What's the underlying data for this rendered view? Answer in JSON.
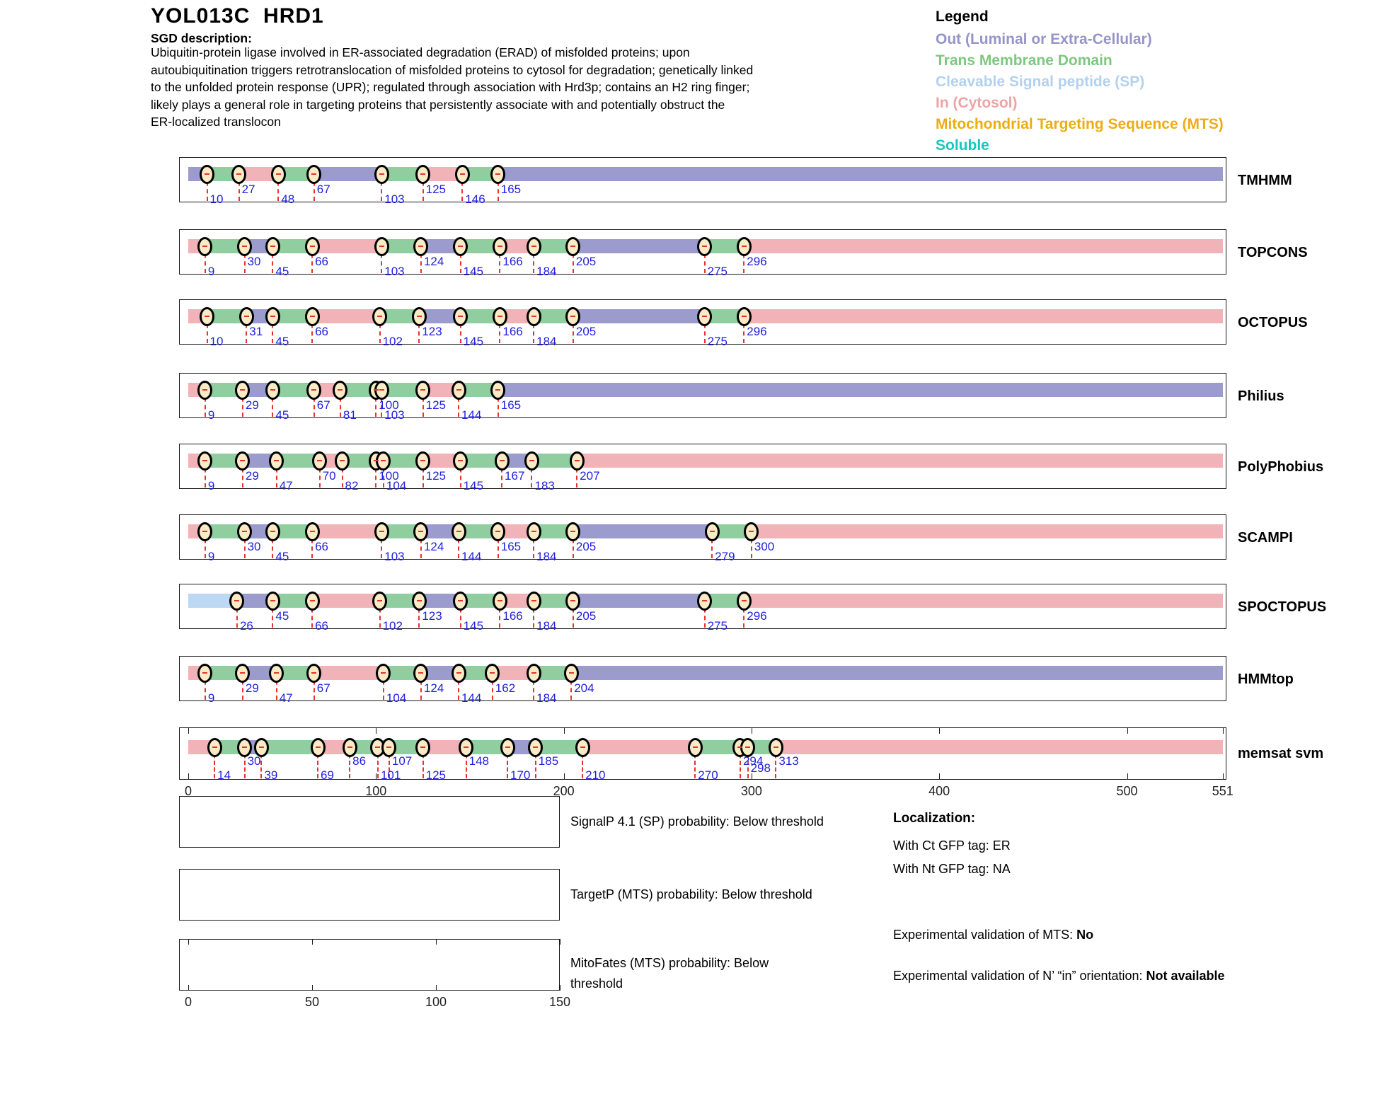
{
  "header": {
    "title": "YOL013C  HRD1",
    "sgd_label": "SGD description:",
    "description_lines": [
      "Ubiquitin-protein ligase involved in ER-associated degradation (ERAD) of misfolded proteins; upon",
      "autoubiquitination triggers retrotranslocation of misfolded proteins to cytosol for degradation; genetically linked",
      "to the unfolded protein response (UPR); regulated through association with Hrd3p; contains an H2 ring finger;",
      "likely plays a general role in targeting proteins that persistently associate with and potentially obstruct the",
      "ER-localized translocon"
    ]
  },
  "legend": {
    "title": "Legend",
    "items": [
      {
        "key": "out",
        "label": "Out (Luminal or Extra-Cellular)",
        "color": "#9694c8"
      },
      {
        "key": "tm",
        "label": "Trans Membrane Domain",
        "color": "#7ec87f"
      },
      {
        "key": "sp",
        "label": "Cleavable Signal peptide (SP)",
        "color": "#b3d1ee"
      },
      {
        "key": "in",
        "label": "In (Cytosol)",
        "color": "#f0a3a3"
      },
      {
        "key": "mts",
        "label": "Mitochondrial Targeting Sequence (MTS)",
        "color": "#edac15"
      },
      {
        "key": "soluble",
        "label": "Soluble",
        "color": "#16c7be"
      }
    ]
  },
  "colors": {
    "out": "#9b9bce",
    "tm": "#90ce9f",
    "in": "#f2b3b8",
    "sp": "#bcd8f2",
    "marker_fill": "#f8ebc6",
    "dash_red": "#e8322e",
    "number_blue": "#2121dd"
  },
  "chart_data": {
    "type": "bar",
    "subtype": "protein-topology-prediction-tracks",
    "xlim": [
      0,
      551
    ],
    "x_ticks": [
      0,
      100,
      200,
      300,
      400,
      500,
      551
    ],
    "grid": false,
    "legend_position": "top-right",
    "tracks": [
      {
        "name": "TMHMM",
        "segments": [
          [
            0,
            10,
            "out"
          ],
          [
            10,
            27,
            "tm"
          ],
          [
            27,
            48,
            "in"
          ],
          [
            48,
            67,
            "tm"
          ],
          [
            67,
            103,
            "out"
          ],
          [
            103,
            125,
            "tm"
          ],
          [
            125,
            146,
            "in"
          ],
          [
            146,
            165,
            "tm"
          ],
          [
            165,
            551,
            "out"
          ]
        ],
        "boundaries": [
          [
            10,
            "l"
          ],
          [
            27,
            "u"
          ],
          [
            48,
            "l"
          ],
          [
            67,
            "u"
          ],
          [
            103,
            "l"
          ],
          [
            125,
            "u"
          ],
          [
            146,
            "l"
          ],
          [
            165,
            "u"
          ]
        ]
      },
      {
        "name": "TOPCONS",
        "segments": [
          [
            0,
            9,
            "in"
          ],
          [
            9,
            30,
            "tm"
          ],
          [
            30,
            45,
            "out"
          ],
          [
            45,
            66,
            "tm"
          ],
          [
            66,
            103,
            "in"
          ],
          [
            103,
            124,
            "tm"
          ],
          [
            124,
            145,
            "out"
          ],
          [
            145,
            166,
            "tm"
          ],
          [
            166,
            184,
            "in"
          ],
          [
            184,
            205,
            "tm"
          ],
          [
            205,
            275,
            "out"
          ],
          [
            275,
            296,
            "tm"
          ],
          [
            296,
            551,
            "in"
          ]
        ],
        "boundaries": [
          [
            9,
            "l"
          ],
          [
            30,
            "u"
          ],
          [
            45,
            "l"
          ],
          [
            66,
            "u"
          ],
          [
            103,
            "l"
          ],
          [
            124,
            "u"
          ],
          [
            145,
            "l"
          ],
          [
            166,
            "u"
          ],
          [
            184,
            "l"
          ],
          [
            205,
            "u"
          ],
          [
            275,
            "l"
          ],
          [
            296,
            "u"
          ]
        ]
      },
      {
        "name": "OCTOPUS",
        "segments": [
          [
            0,
            10,
            "in"
          ],
          [
            10,
            31,
            "tm"
          ],
          [
            31,
            45,
            "out"
          ],
          [
            45,
            66,
            "tm"
          ],
          [
            66,
            102,
            "in"
          ],
          [
            102,
            123,
            "tm"
          ],
          [
            123,
            145,
            "out"
          ],
          [
            145,
            166,
            "tm"
          ],
          [
            166,
            184,
            "in"
          ],
          [
            184,
            205,
            "tm"
          ],
          [
            205,
            275,
            "out"
          ],
          [
            275,
            296,
            "tm"
          ],
          [
            296,
            551,
            "in"
          ]
        ],
        "boundaries": [
          [
            10,
            "l"
          ],
          [
            31,
            "u"
          ],
          [
            45,
            "l"
          ],
          [
            66,
            "u"
          ],
          [
            102,
            "l"
          ],
          [
            123,
            "u"
          ],
          [
            145,
            "l"
          ],
          [
            166,
            "u"
          ],
          [
            184,
            "l"
          ],
          [
            205,
            "u"
          ],
          [
            275,
            "l"
          ],
          [
            296,
            "u"
          ]
        ]
      },
      {
        "name": "Philius",
        "segments": [
          [
            0,
            9,
            "in"
          ],
          [
            9,
            29,
            "tm"
          ],
          [
            29,
            45,
            "out"
          ],
          [
            45,
            67,
            "tm"
          ],
          [
            67,
            81,
            "in"
          ],
          [
            81,
            100,
            "tm"
          ],
          [
            100,
            103,
            "out"
          ],
          [
            103,
            125,
            "tm"
          ],
          [
            125,
            144,
            "in"
          ],
          [
            144,
            165,
            "tm"
          ],
          [
            165,
            551,
            "out"
          ]
        ],
        "boundaries": [
          [
            9,
            "l"
          ],
          [
            29,
            "u"
          ],
          [
            45,
            "l"
          ],
          [
            67,
            "u"
          ],
          [
            81,
            "l"
          ],
          [
            100,
            "u"
          ],
          [
            103,
            "l"
          ],
          [
            125,
            "u"
          ],
          [
            144,
            "l"
          ],
          [
            165,
            "u"
          ]
        ]
      },
      {
        "name": "PolyPhobius",
        "segments": [
          [
            0,
            9,
            "in"
          ],
          [
            9,
            29,
            "tm"
          ],
          [
            29,
            47,
            "out"
          ],
          [
            47,
            70,
            "tm"
          ],
          [
            70,
            82,
            "in"
          ],
          [
            82,
            100,
            "tm"
          ],
          [
            100,
            104,
            "out"
          ],
          [
            104,
            125,
            "tm"
          ],
          [
            125,
            145,
            "in"
          ],
          [
            145,
            167,
            "tm"
          ],
          [
            167,
            183,
            "out"
          ],
          [
            183,
            207,
            "tm"
          ],
          [
            207,
            551,
            "in"
          ]
        ],
        "boundaries": [
          [
            9,
            "l"
          ],
          [
            29,
            "u"
          ],
          [
            47,
            "l"
          ],
          [
            70,
            "u"
          ],
          [
            82,
            "l"
          ],
          [
            100,
            "u"
          ],
          [
            104,
            "l"
          ],
          [
            125,
            "u"
          ],
          [
            145,
            "l"
          ],
          [
            167,
            "u"
          ],
          [
            183,
            "l"
          ],
          [
            207,
            "u"
          ]
        ]
      },
      {
        "name": "SCAMPI",
        "segments": [
          [
            0,
            9,
            "in"
          ],
          [
            9,
            30,
            "tm"
          ],
          [
            30,
            45,
            "out"
          ],
          [
            45,
            66,
            "tm"
          ],
          [
            66,
            103,
            "in"
          ],
          [
            103,
            124,
            "tm"
          ],
          [
            124,
            144,
            "out"
          ],
          [
            144,
            165,
            "tm"
          ],
          [
            165,
            184,
            "in"
          ],
          [
            184,
            205,
            "tm"
          ],
          [
            205,
            279,
            "out"
          ],
          [
            279,
            300,
            "tm"
          ],
          [
            300,
            551,
            "in"
          ]
        ],
        "boundaries": [
          [
            9,
            "l"
          ],
          [
            30,
            "u"
          ],
          [
            45,
            "l"
          ],
          [
            66,
            "u"
          ],
          [
            103,
            "l"
          ],
          [
            124,
            "u"
          ],
          [
            144,
            "l"
          ],
          [
            165,
            "u"
          ],
          [
            184,
            "l"
          ],
          [
            205,
            "u"
          ],
          [
            279,
            "l"
          ],
          [
            300,
            "u"
          ]
        ]
      },
      {
        "name": "SPOCTOPUS",
        "segments": [
          [
            0,
            26,
            "sp"
          ],
          [
            26,
            45,
            "out"
          ],
          [
            45,
            66,
            "tm"
          ],
          [
            66,
            102,
            "in"
          ],
          [
            102,
            123,
            "tm"
          ],
          [
            123,
            145,
            "out"
          ],
          [
            145,
            166,
            "tm"
          ],
          [
            166,
            184,
            "in"
          ],
          [
            184,
            205,
            "tm"
          ],
          [
            205,
            275,
            "out"
          ],
          [
            275,
            296,
            "tm"
          ],
          [
            296,
            551,
            "in"
          ]
        ],
        "boundaries": [
          [
            26,
            "l"
          ],
          [
            45,
            "u"
          ],
          [
            66,
            "l"
          ],
          [
            102,
            "l"
          ],
          [
            123,
            "u"
          ],
          [
            145,
            "l"
          ],
          [
            166,
            "u"
          ],
          [
            184,
            "l"
          ],
          [
            205,
            "u"
          ],
          [
            275,
            "l"
          ],
          [
            296,
            "u"
          ]
        ]
      },
      {
        "name": "HMMtop",
        "segments": [
          [
            0,
            9,
            "in"
          ],
          [
            9,
            29,
            "tm"
          ],
          [
            29,
            47,
            "out"
          ],
          [
            47,
            67,
            "tm"
          ],
          [
            67,
            104,
            "in"
          ],
          [
            104,
            124,
            "tm"
          ],
          [
            124,
            144,
            "out"
          ],
          [
            144,
            162,
            "tm"
          ],
          [
            162,
            184,
            "in"
          ],
          [
            184,
            204,
            "tm"
          ],
          [
            204,
            551,
            "out"
          ]
        ],
        "boundaries": [
          [
            9,
            "l"
          ],
          [
            29,
            "u"
          ],
          [
            47,
            "l"
          ],
          [
            67,
            "u"
          ],
          [
            104,
            "l"
          ],
          [
            124,
            "u"
          ],
          [
            144,
            "l"
          ],
          [
            162,
            "u"
          ],
          [
            184,
            "l"
          ],
          [
            204,
            "u"
          ]
        ]
      },
      {
        "name": "memsat svm",
        "segments": [
          [
            0,
            14,
            "in"
          ],
          [
            14,
            30,
            "tm"
          ],
          [
            30,
            39,
            "out"
          ],
          [
            39,
            69,
            "tm"
          ],
          [
            69,
            86,
            "in"
          ],
          [
            86,
            101,
            "tm"
          ],
          [
            101,
            107,
            "out"
          ],
          [
            107,
            125,
            "tm"
          ],
          [
            125,
            148,
            "in"
          ],
          [
            148,
            170,
            "tm"
          ],
          [
            170,
            185,
            "out"
          ],
          [
            185,
            210,
            "tm"
          ],
          [
            210,
            270,
            "in"
          ],
          [
            270,
            294,
            "tm"
          ],
          [
            294,
            298,
            "out"
          ],
          [
            298,
            313,
            "tm"
          ],
          [
            313,
            551,
            "in"
          ]
        ],
        "boundaries": [
          [
            14,
            "l"
          ],
          [
            30,
            "u"
          ],
          [
            39,
            "l"
          ],
          [
            69,
            "l"
          ],
          [
            86,
            "u"
          ],
          [
            101,
            "l"
          ],
          [
            107,
            "u"
          ],
          [
            125,
            "l"
          ],
          [
            148,
            "u"
          ],
          [
            170,
            "l"
          ],
          [
            185,
            "u"
          ],
          [
            210,
            "l"
          ],
          [
            270,
            "l"
          ],
          [
            294,
            "u"
          ],
          [
            298,
            "m"
          ],
          [
            313,
            "u"
          ]
        ]
      }
    ]
  },
  "probability_panels": {
    "panels": [
      {
        "caption": "SignalP 4.1 (SP) probability: Below threshold"
      },
      {
        "caption": "TargetP (MTS) probability: Below threshold"
      },
      {
        "caption": "MitoFates (MTS) probability: Below threshold",
        "x_ticks": [
          0,
          50,
          100,
          150
        ]
      }
    ]
  },
  "localization": {
    "title": "Localization:",
    "lines": [
      "With Ct GFP tag: ER",
      "With Nt GFP tag: NA"
    ],
    "mts": {
      "text": "Experimental validation of MTS: ",
      "bold": "No"
    },
    "orientation": {
      "text": "Experimental validation of N’ “in” orientation: ",
      "bold": "Not available"
    }
  }
}
